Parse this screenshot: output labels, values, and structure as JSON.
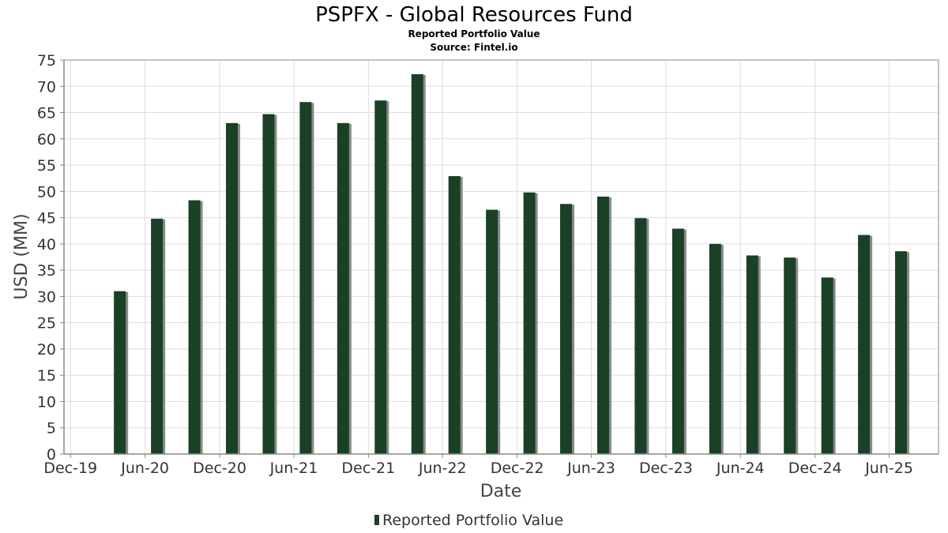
{
  "chart_data": {
    "type": "bar",
    "title": "PSPFX - Global Resources Fund",
    "subtitle": "Reported Portfolio Value",
    "source": "Source: Fintel.io",
    "xlabel": "Date",
    "ylabel": "USD (MM)",
    "ylim": [
      0,
      75
    ],
    "y_ticks": [
      0,
      5,
      10,
      15,
      20,
      25,
      30,
      35,
      40,
      45,
      50,
      55,
      60,
      65,
      70,
      75
    ],
    "x_range": [
      "2019-11-15",
      "2025-09-30"
    ],
    "x_ticks": [
      {
        "date": "2019-12-01",
        "label": "Dec-19"
      },
      {
        "date": "2020-06-01",
        "label": "Jun-20"
      },
      {
        "date": "2020-12-01",
        "label": "Dec-20"
      },
      {
        "date": "2021-06-01",
        "label": "Jun-21"
      },
      {
        "date": "2021-12-01",
        "label": "Dec-21"
      },
      {
        "date": "2022-06-01",
        "label": "Jun-22"
      },
      {
        "date": "2022-12-01",
        "label": "Dec-22"
      },
      {
        "date": "2023-06-01",
        "label": "Jun-23"
      },
      {
        "date": "2023-12-01",
        "label": "Dec-23"
      },
      {
        "date": "2024-06-01",
        "label": "Jun-24"
      },
      {
        "date": "2024-12-01",
        "label": "Dec-24"
      },
      {
        "date": "2025-06-01",
        "label": "Jun-25"
      }
    ],
    "grid": true,
    "legend_position": "bottom",
    "series": [
      {
        "name": "Reported Portfolio Value",
        "color": "#1a4025",
        "shadow_color": "#8a8a8a",
        "points": [
          {
            "x": "2020-03-31",
            "y": 31.0
          },
          {
            "x": "2020-06-30",
            "y": 44.8
          },
          {
            "x": "2020-09-30",
            "y": 48.3
          },
          {
            "x": "2020-12-31",
            "y": 63.0
          },
          {
            "x": "2021-03-31",
            "y": 64.7
          },
          {
            "x": "2021-06-30",
            "y": 67.0
          },
          {
            "x": "2021-09-30",
            "y": 63.0
          },
          {
            "x": "2021-12-31",
            "y": 67.3
          },
          {
            "x": "2022-03-31",
            "y": 72.3
          },
          {
            "x": "2022-06-30",
            "y": 52.9
          },
          {
            "x": "2022-09-30",
            "y": 46.5
          },
          {
            "x": "2022-12-31",
            "y": 49.8
          },
          {
            "x": "2023-03-31",
            "y": 47.6
          },
          {
            "x": "2023-06-30",
            "y": 49.0
          },
          {
            "x": "2023-09-30",
            "y": 44.9
          },
          {
            "x": "2023-12-31",
            "y": 42.9
          },
          {
            "x": "2024-03-31",
            "y": 40.0
          },
          {
            "x": "2024-06-30",
            "y": 37.8
          },
          {
            "x": "2024-09-30",
            "y": 37.4
          },
          {
            "x": "2024-12-31",
            "y": 33.6
          },
          {
            "x": "2025-03-31",
            "y": 41.7
          },
          {
            "x": "2025-06-30",
            "y": 38.6
          }
        ]
      }
    ]
  }
}
